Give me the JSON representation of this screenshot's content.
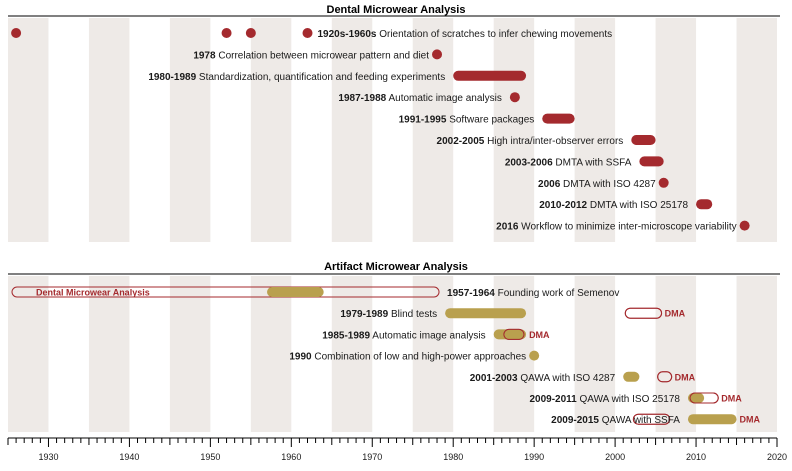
{
  "colors": {
    "dental": "#a42a2e",
    "artifact": "#b9a04e",
    "band": "#eeeae7",
    "axis": "#000000"
  },
  "axis": {
    "start": 1925,
    "end": 2020,
    "major_labels": [
      "1930",
      "1940",
      "1950",
      "1960",
      "1970",
      "1980",
      "1990",
      "2000",
      "2010",
      "2020"
    ]
  },
  "dental": {
    "title": "Dental Microwear Analysis",
    "events": [
      {
        "year": "1920s-1960s",
        "text": "Orientation of scratches to infer chewing movements",
        "dots": [
          1926,
          1952,
          1955,
          1962
        ]
      },
      {
        "year": "1978",
        "text": "Correlation between microwear pattern and diet",
        "dots": [
          1978
        ]
      },
      {
        "year": "1980-1989",
        "text": "Standardization, quantification and feeding experiments",
        "bar": [
          1980,
          1989
        ]
      },
      {
        "year": "1987-1988",
        "text": "Automatic image analysis",
        "bar": [
          1987,
          1988
        ]
      },
      {
        "year": "1991-1995",
        "text": "Software packages",
        "bar": [
          1991,
          1995
        ]
      },
      {
        "year": "2002-2005",
        "text": "High intra/inter-observer errors",
        "bar": [
          2002,
          2005
        ]
      },
      {
        "year": "2003-2006",
        "text": "DMTA with SSFA",
        "bar": [
          2003,
          2006
        ]
      },
      {
        "year": "2006",
        "text": "DMTA with ISO 4287",
        "dots": [
          2006
        ]
      },
      {
        "year": "2010-2012",
        "text": "DMTA with ISO 25178",
        "bar": [
          2010,
          2012
        ]
      },
      {
        "year": "2016",
        "text": "Workflow to minimize inter-microscope variability",
        "dots": [
          2016
        ]
      }
    ]
  },
  "artifact": {
    "title": "Artifact Microwear Analysis",
    "dental_outline_label": "Dental Microwear Analysis",
    "dma_label": "DMA",
    "events": [
      {
        "year": "1957-1964",
        "text": "Founding work of Semenov",
        "bar": [
          1957,
          1964
        ],
        "outline": [
          1925,
          1978
        ],
        "outline_label": true
      },
      {
        "year": "1979-1989",
        "text": "Blind tests",
        "bar": [
          1979,
          1989
        ],
        "outline": [
          2002,
          2005
        ],
        "dma": true
      },
      {
        "year": "1985-1989",
        "text": "Automatic image analysis",
        "bar": [
          1985,
          1989
        ],
        "outline": [
          1987,
          1988
        ],
        "dma": true
      },
      {
        "year": "1990",
        "text": "Combination of low and high-power approaches",
        "dots": [
          1990
        ]
      },
      {
        "year": "2001-2003",
        "text": "QAWA with ISO 4287",
        "bar": [
          2001,
          2003
        ],
        "outline": [
          2006,
          2006
        ],
        "dma": true
      },
      {
        "year": "2009-2011",
        "text": "QAWA with ISO 25178",
        "bar": [
          2009,
          2011
        ],
        "outline": [
          2010,
          2012
        ],
        "dma": true
      },
      {
        "year": "2009-2015",
        "text": "QAWA with SSFA",
        "bar": [
          2009,
          2015
        ],
        "outline": [
          2003,
          2006
        ],
        "dma": true
      }
    ]
  }
}
